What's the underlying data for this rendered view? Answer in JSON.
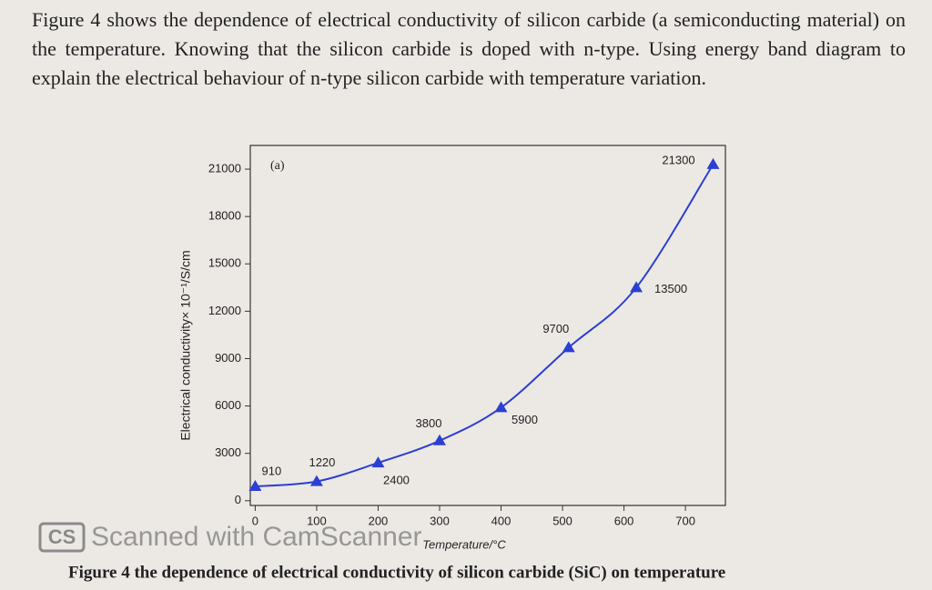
{
  "question": "Figure 4 shows the dependence of electrical conductivity of silicon carbide (a semiconducting material) on the temperature. Knowing that the silicon carbide is doped with n-type. Using energy band diagram to explain the electrical behaviour of n-type silicon carbide with temperature variation.",
  "chart_data": {
    "type": "line",
    "annotation": "(a)",
    "xlabel": "Temperature/°C",
    "ylabel": "Electrical conductivity× 10⁻¹/S/cm",
    "x": [
      0,
      100,
      200,
      300,
      400,
      510,
      620,
      745
    ],
    "values": [
      910,
      1220,
      2400,
      3800,
      5900,
      9700,
      13500,
      21300
    ],
    "color": "#2b3fd2",
    "xlim": [
      -8,
      765
    ],
    "xticks": [
      0,
      100,
      200,
      300,
      400,
      500,
      600,
      700
    ],
    "ylim": [
      -300,
      22500
    ],
    "yticks": [
      0,
      3000,
      6000,
      9000,
      12000,
      15000,
      18000,
      21000
    ]
  },
  "watermark": {
    "logo": "CS",
    "text": "Scanned with CamScanner"
  },
  "caption": "Figure 4 the dependence of electrical conductivity of silicon carbide (SiC) on temperature"
}
